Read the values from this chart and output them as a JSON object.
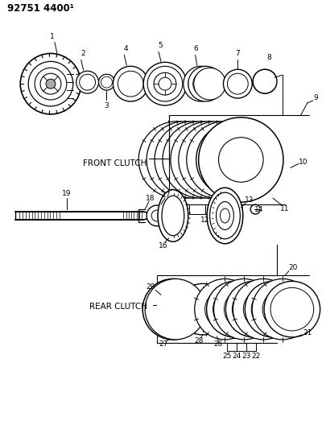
{
  "title": "92751 4400¹",
  "front_clutch_label": "FRONT CLUTCH",
  "rear_clutch_label": "REAR CLUTCH",
  "bg_color": "#ffffff",
  "line_color": "#000000",
  "gray_fill": "#cccccc",
  "dark_fill": "#555555"
}
